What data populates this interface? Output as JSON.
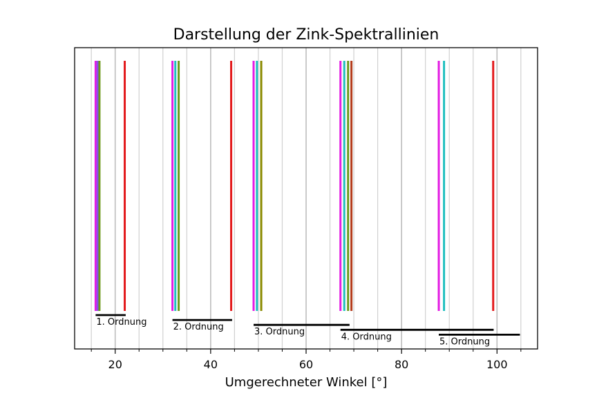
{
  "chart_data": {
    "type": "line",
    "title": "Darstellung der Zink-Spektrallinien",
    "xlabel": "Umgerechneter Winkel [°]",
    "ylabel": "",
    "xlim": [
      11.5,
      108.5
    ],
    "major_ticks": [
      20,
      40,
      60,
      80,
      100
    ],
    "minor_ticks": [
      15,
      25,
      30,
      35,
      45,
      50,
      55,
      65,
      70,
      75,
      85,
      90,
      95,
      105
    ],
    "grid": true,
    "spectral_lines": [
      {
        "order": 1,
        "angle": 15.9,
        "color": "#e31be3"
      },
      {
        "order": 1,
        "angle": 16.3,
        "color": "#8a4fe8"
      },
      {
        "order": 1,
        "angle": 16.7,
        "color": "#6b9a1a"
      },
      {
        "order": 1,
        "angle": 22.0,
        "color": "#e31a1c"
      },
      {
        "order": 2,
        "angle": 32.0,
        "color": "#e31be3"
      },
      {
        "order": 2,
        "angle": 32.6,
        "color": "#1fbfbf"
      },
      {
        "order": 2,
        "angle": 33.3,
        "color": "#6b9a1a"
      },
      {
        "order": 2,
        "angle": 44.3,
        "color": "#e31a1c"
      },
      {
        "order": 3,
        "angle": 49.0,
        "color": "#e31be3"
      },
      {
        "order": 3,
        "angle": 49.7,
        "color": "#1fbfbf"
      },
      {
        "order": 3,
        "angle": 50.6,
        "color": "#8a8a00"
      },
      {
        "order": 4,
        "angle": 67.2,
        "color": "#e31be3"
      },
      {
        "order": 4,
        "angle": 68.0,
        "color": "#1fbfbf"
      },
      {
        "order": 4,
        "angle": 68.8,
        "color": "#6b9a1a"
      },
      {
        "order": 4,
        "angle": 69.5,
        "color": "#b33a1a"
      },
      {
        "order": 5,
        "angle": 87.8,
        "color": "#e31be3"
      },
      {
        "order": 5,
        "angle": 88.9,
        "color": "#1fbfbf"
      },
      {
        "order": 5,
        "angle": 99.2,
        "color": "#e31a1c"
      }
    ],
    "orders": [
      {
        "label": "1. Ordnung",
        "start": 15.9,
        "end": 22.2
      },
      {
        "label": "2. Ordnung",
        "start": 32.0,
        "end": 44.5
      },
      {
        "label": "3. Ordnung",
        "start": 49.0,
        "end": 69.1
      },
      {
        "label": "4. Ordnung",
        "start": 67.2,
        "end": 99.3
      },
      {
        "label": "5. Ordnung",
        "start": 87.8,
        "end": 104.8
      }
    ]
  }
}
